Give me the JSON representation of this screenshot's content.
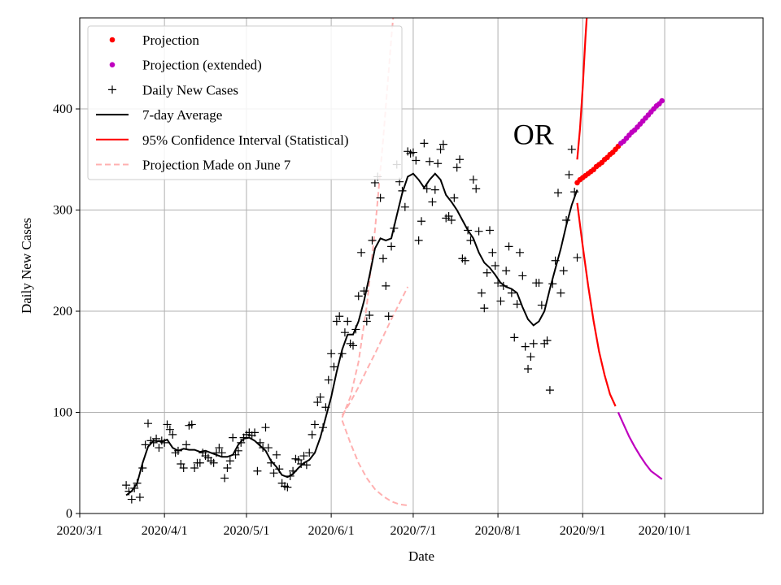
{
  "chart_data": {
    "type": "line",
    "xlabel": "Date",
    "ylabel": "Daily New Cases",
    "annotation": "OR",
    "ylim": [
      0,
      490
    ],
    "xlim": [
      0,
      250
    ],
    "grid": true,
    "legend_position": "top-left",
    "x_ticks": [
      {
        "label": "2020/3/1",
        "day": 0
      },
      {
        "label": "2020/4/1",
        "day": 31
      },
      {
        "label": "2020/5/1",
        "day": 61
      },
      {
        "label": "2020/6/1",
        "day": 92
      },
      {
        "label": "2020/7/1",
        "day": 122
      },
      {
        "label": "2020/8/1",
        "day": 153
      },
      {
        "label": "2020/9/1",
        "day": 184
      },
      {
        "label": "2020/10/1",
        "day": 214
      }
    ],
    "y_ticks": [
      0,
      100,
      200,
      300,
      400
    ],
    "colors": {
      "projection": "#ff0000",
      "projection_extended": "#bf00bf",
      "daily": "#000000",
      "average": "#000000",
      "ci": "#ff0000",
      "june7": "#ffb0b0"
    },
    "legend": [
      {
        "label": "Projection",
        "marker": "dot",
        "color": "#ff0000"
      },
      {
        "label": "Projection (extended)",
        "marker": "dot",
        "color": "#bf00bf"
      },
      {
        "label": "Daily New Cases",
        "marker": "plus",
        "color": "#000000"
      },
      {
        "label": "7-day Average",
        "marker": "line",
        "color": "#000000"
      },
      {
        "label": "95% Confidence Interval (Statistical)",
        "marker": "line",
        "color": "#ff0000"
      },
      {
        "label": "Projection Made on June 7",
        "marker": "dash",
        "color": "#ffb0b0"
      }
    ],
    "daily_cases": [
      [
        17,
        28
      ],
      [
        18,
        22
      ],
      [
        19,
        14
      ],
      [
        20,
        25
      ],
      [
        21,
        30
      ],
      [
        22,
        16
      ],
      [
        23,
        45
      ],
      [
        24,
        68
      ],
      [
        25,
        89
      ],
      [
        26,
        72
      ],
      [
        27,
        70
      ],
      [
        28,
        74
      ],
      [
        29,
        65
      ],
      [
        30,
        72
      ],
      [
        31,
        70
      ],
      [
        32,
        88
      ],
      [
        33,
        83
      ],
      [
        34,
        78
      ],
      [
        35,
        60
      ],
      [
        36,
        62
      ],
      [
        37,
        49
      ],
      [
        38,
        45
      ],
      [
        39,
        68
      ],
      [
        40,
        87
      ],
      [
        41,
        88
      ],
      [
        42,
        45
      ],
      [
        43,
        50
      ],
      [
        44,
        50
      ],
      [
        45,
        60
      ],
      [
        46,
        57
      ],
      [
        47,
        55
      ],
      [
        48,
        52
      ],
      [
        49,
        50
      ],
      [
        50,
        60
      ],
      [
        51,
        65
      ],
      [
        52,
        60
      ],
      [
        53,
        35
      ],
      [
        54,
        45
      ],
      [
        55,
        52
      ],
      [
        56,
        75
      ],
      [
        57,
        58
      ],
      [
        58,
        62
      ],
      [
        59,
        70
      ],
      [
        60,
        75
      ],
      [
        61,
        78
      ],
      [
        62,
        80
      ],
      [
        63,
        77
      ],
      [
        64,
        80
      ],
      [
        65,
        42
      ],
      [
        66,
        70
      ],
      [
        67,
        65
      ],
      [
        68,
        85
      ],
      [
        69,
        65
      ],
      [
        70,
        50
      ],
      [
        71,
        40
      ],
      [
        72,
        58
      ],
      [
        73,
        44
      ],
      [
        74,
        30
      ],
      [
        75,
        27
      ],
      [
        76,
        26
      ],
      [
        77,
        37
      ],
      [
        78,
        42
      ],
      [
        79,
        54
      ],
      [
        80,
        53
      ],
      [
        81,
        49
      ],
      [
        82,
        57
      ],
      [
        83,
        48
      ],
      [
        84,
        60
      ],
      [
        85,
        78
      ],
      [
        86,
        88
      ],
      [
        87,
        110
      ],
      [
        88,
        115
      ],
      [
        89,
        85
      ],
      [
        90,
        105
      ],
      [
        91,
        132
      ],
      [
        92,
        158
      ],
      [
        93,
        145
      ],
      [
        94,
        190
      ],
      [
        95,
        195
      ],
      [
        96,
        158
      ],
      [
        97,
        179
      ],
      [
        98,
        190
      ],
      [
        99,
        168
      ],
      [
        100,
        166
      ],
      [
        101,
        182
      ],
      [
        102,
        215
      ],
      [
        103,
        258
      ],
      [
        104,
        220
      ],
      [
        105,
        190
      ],
      [
        106,
        196
      ],
      [
        107,
        270
      ],
      [
        108,
        327
      ],
      [
        109,
        333
      ],
      [
        110,
        312
      ],
      [
        111,
        252
      ],
      [
        112,
        225
      ],
      [
        113,
        195
      ],
      [
        114,
        264
      ],
      [
        115,
        282
      ],
      [
        116,
        345
      ],
      [
        117,
        328
      ],
      [
        118,
        319
      ],
      [
        119,
        303
      ],
      [
        120,
        358
      ],
      [
        121,
        356
      ],
      [
        122,
        357
      ],
      [
        123,
        349
      ],
      [
        124,
        270
      ],
      [
        125,
        289
      ],
      [
        126,
        366
      ],
      [
        127,
        321
      ],
      [
        128,
        348
      ],
      [
        129,
        308
      ],
      [
        130,
        320
      ],
      [
        131,
        346
      ],
      [
        132,
        360
      ],
      [
        133,
        365
      ],
      [
        134,
        292
      ],
      [
        135,
        294
      ],
      [
        136,
        290
      ],
      [
        137,
        312
      ],
      [
        138,
        342
      ],
      [
        139,
        350
      ],
      [
        140,
        252
      ],
      [
        141,
        250
      ],
      [
        142,
        280
      ],
      [
        143,
        270
      ],
      [
        144,
        330
      ],
      [
        145,
        321
      ],
      [
        146,
        279
      ],
      [
        147,
        218
      ],
      [
        148,
        203
      ],
      [
        149,
        238
      ],
      [
        150,
        280
      ],
      [
        151,
        258
      ],
      [
        152,
        245
      ],
      [
        153,
        228
      ],
      [
        154,
        210
      ],
      [
        155,
        225
      ],
      [
        156,
        240
      ],
      [
        157,
        264
      ],
      [
        158,
        218
      ],
      [
        159,
        174
      ],
      [
        160,
        207
      ],
      [
        161,
        258
      ],
      [
        162,
        235
      ],
      [
        163,
        165
      ],
      [
        164,
        143
      ],
      [
        165,
        155
      ],
      [
        166,
        168
      ],
      [
        167,
        228
      ],
      [
        168,
        228
      ],
      [
        169,
        206
      ],
      [
        170,
        168
      ],
      [
        171,
        171
      ],
      [
        172,
        122
      ],
      [
        173,
        227
      ],
      [
        174,
        250
      ],
      [
        175,
        317
      ],
      [
        176,
        218
      ],
      [
        177,
        240
      ],
      [
        178,
        290
      ],
      [
        179,
        335
      ],
      [
        180,
        360
      ],
      [
        181,
        318
      ],
      [
        182,
        253
      ]
    ],
    "seven_day_average": [
      [
        17,
        18
      ],
      [
        19,
        22
      ],
      [
        21,
        30
      ],
      [
        23,
        50
      ],
      [
        25,
        66
      ],
      [
        27,
        72
      ],
      [
        30,
        71
      ],
      [
        32,
        73
      ],
      [
        34,
        65
      ],
      [
        36,
        62
      ],
      [
        38,
        64
      ],
      [
        40,
        63
      ],
      [
        42,
        63
      ],
      [
        44,
        61
      ],
      [
        46,
        62
      ],
      [
        48,
        60
      ],
      [
        50,
        58
      ],
      [
        52,
        56
      ],
      [
        54,
        56
      ],
      [
        56,
        58
      ],
      [
        58,
        68
      ],
      [
        60,
        74
      ],
      [
        62,
        75
      ],
      [
        64,
        72
      ],
      [
        66,
        67
      ],
      [
        68,
        62
      ],
      [
        70,
        52
      ],
      [
        72,
        46
      ],
      [
        74,
        38
      ],
      [
        76,
        36
      ],
      [
        78,
        39
      ],
      [
        80,
        45
      ],
      [
        82,
        50
      ],
      [
        84,
        53
      ],
      [
        86,
        60
      ],
      [
        88,
        75
      ],
      [
        90,
        95
      ],
      [
        92,
        115
      ],
      [
        94,
        140
      ],
      [
        96,
        162
      ],
      [
        98,
        177
      ],
      [
        100,
        177
      ],
      [
        102,
        190
      ],
      [
        104,
        210
      ],
      [
        106,
        235
      ],
      [
        108,
        262
      ],
      [
        110,
        272
      ],
      [
        112,
        270
      ],
      [
        114,
        272
      ],
      [
        116,
        295
      ],
      [
        118,
        317
      ],
      [
        120,
        333
      ],
      [
        122,
        336
      ],
      [
        124,
        330
      ],
      [
        126,
        322
      ],
      [
        128,
        330
      ],
      [
        130,
        336
      ],
      [
        132,
        330
      ],
      [
        134,
        315
      ],
      [
        136,
        308
      ],
      [
        138,
        300
      ],
      [
        140,
        290
      ],
      [
        142,
        280
      ],
      [
        144,
        272
      ],
      [
        146,
        258
      ],
      [
        148,
        248
      ],
      [
        150,
        243
      ],
      [
        152,
        236
      ],
      [
        154,
        228
      ],
      [
        156,
        224
      ],
      [
        158,
        222
      ],
      [
        160,
        218
      ],
      [
        162,
        204
      ],
      [
        164,
        192
      ],
      [
        166,
        186
      ],
      [
        168,
        190
      ],
      [
        170,
        200
      ],
      [
        172,
        222
      ],
      [
        174,
        242
      ],
      [
        176,
        262
      ],
      [
        178,
        285
      ],
      [
        180,
        305
      ],
      [
        182,
        320
      ]
    ],
    "projection": [
      [
        182,
        327
      ],
      [
        183,
        330
      ],
      [
        184,
        332
      ],
      [
        185,
        334
      ],
      [
        186,
        336
      ],
      [
        187,
        338
      ],
      [
        188,
        340
      ],
      [
        189,
        343
      ],
      [
        190,
        345
      ],
      [
        191,
        347
      ],
      [
        192,
        350
      ],
      [
        193,
        352
      ],
      [
        194,
        355
      ],
      [
        195,
        357
      ],
      [
        196,
        360
      ],
      [
        197,
        363
      ]
    ],
    "projection_extended": [
      [
        198,
        366
      ],
      [
        199,
        368
      ],
      [
        200,
        371
      ],
      [
        201,
        374
      ],
      [
        202,
        377
      ],
      [
        203,
        379
      ],
      [
        204,
        382
      ],
      [
        205,
        385
      ],
      [
        206,
        388
      ],
      [
        207,
        391
      ],
      [
        208,
        394
      ],
      [
        209,
        397
      ],
      [
        210,
        400
      ],
      [
        211,
        403
      ],
      [
        212,
        405
      ],
      [
        213,
        408
      ]
    ],
    "ci_upper": [
      [
        182,
        350
      ],
      [
        183,
        380
      ],
      [
        184,
        420
      ],
      [
        185,
        470
      ],
      [
        185.7,
        500
      ]
    ],
    "ci_lower_red": [
      [
        182,
        307
      ],
      [
        184,
        265
      ],
      [
        186,
        225
      ],
      [
        188,
        190
      ],
      [
        190,
        160
      ],
      [
        192,
        137
      ],
      [
        194,
        118
      ],
      [
        196,
        106
      ]
    ],
    "ci_lower_extended": [
      [
        197,
        100
      ],
      [
        199,
        88
      ],
      [
        201,
        76
      ],
      [
        203,
        66
      ],
      [
        205,
        57
      ],
      [
        207,
        49
      ],
      [
        209,
        42
      ],
      [
        211,
        38
      ],
      [
        213,
        34
      ]
    ],
    "june7_upper": [
      [
        96,
        95
      ],
      [
        99,
        115
      ],
      [
        102,
        150
      ],
      [
        105,
        205
      ],
      [
        108,
        280
      ],
      [
        111,
        370
      ],
      [
        114,
        470
      ],
      [
        115,
        500
      ]
    ],
    "june7_middle": [
      [
        96,
        97
      ],
      [
        99,
        110
      ],
      [
        102,
        125
      ],
      [
        105,
        142
      ],
      [
        108,
        158
      ],
      [
        111,
        175
      ],
      [
        114,
        192
      ],
      [
        117,
        208
      ],
      [
        120,
        224
      ]
    ],
    "june7_lower": [
      [
        96,
        92
      ],
      [
        99,
        70
      ],
      [
        102,
        50
      ],
      [
        105,
        35
      ],
      [
        108,
        24
      ],
      [
        111,
        17
      ],
      [
        114,
        12
      ],
      [
        117,
        9
      ],
      [
        120,
        8
      ]
    ]
  }
}
